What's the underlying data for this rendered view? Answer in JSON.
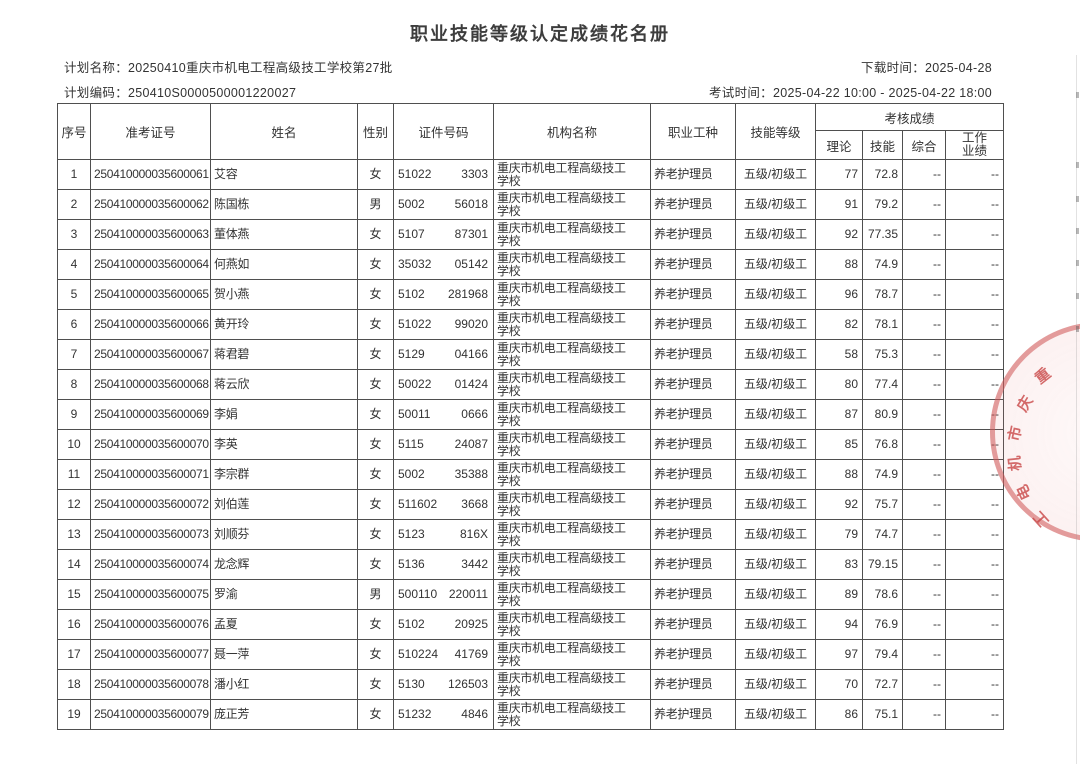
{
  "page": {
    "title": "职业技能等级认定成绩花名册"
  },
  "meta": {
    "plan_name_label": "计划名称：",
    "plan_name": "20250410重庆市机电工程高级技工学校第27批",
    "plan_code_label": "计划编码：",
    "plan_code": "250410S0000500001220027",
    "download_label": "下载时间：",
    "download_time": "2025-04-28",
    "exam_label": "考试时间：",
    "exam_time": "2025-04-22 10:00 - 2025-04-22 18:00"
  },
  "table": {
    "headers": {
      "no": "序号",
      "ticket": "准考证号",
      "name": "姓名",
      "gender": "性别",
      "id": "证件号码",
      "org": "机构名称",
      "occupation": "职业工种",
      "level": "技能等级",
      "score_group": "考核成绩",
      "theory": "理论",
      "skill": "技能",
      "comprehensive": "综合",
      "work_l1": "工作",
      "work_l2": "业绩"
    },
    "shared": {
      "org_line1": "重庆市机电工程高级技工",
      "org_line2": "学校",
      "occupation": "养老护理员",
      "level": "五级/初级工",
      "dash": "--"
    },
    "rows": [
      {
        "no": "1",
        "ticket": "250410000035600061",
        "name": "艾容",
        "gender": "女",
        "id_l": "51022",
        "id_r": "3303",
        "theory": "77",
        "skill": "72.8"
      },
      {
        "no": "2",
        "ticket": "250410000035600062",
        "name": "陈国栋",
        "gender": "男",
        "id_l": "5002",
        "id_r": "56018",
        "theory": "91",
        "skill": "79.2"
      },
      {
        "no": "3",
        "ticket": "250410000035600063",
        "name": "董体燕",
        "gender": "女",
        "id_l": "5107",
        "id_r": "87301",
        "theory": "92",
        "skill": "77.35"
      },
      {
        "no": "4",
        "ticket": "250410000035600064",
        "name": "何燕如",
        "gender": "女",
        "id_l": "35032",
        "id_r": "05142",
        "theory": "88",
        "skill": "74.9"
      },
      {
        "no": "5",
        "ticket": "250410000035600065",
        "name": "贺小燕",
        "gender": "女",
        "id_l": "5102",
        "id_r": "281968",
        "theory": "96",
        "skill": "78.7"
      },
      {
        "no": "6",
        "ticket": "250410000035600066",
        "name": "黄开玲",
        "gender": "女",
        "id_l": "51022",
        "id_r": "99020",
        "theory": "82",
        "skill": "78.1"
      },
      {
        "no": "7",
        "ticket": "250410000035600067",
        "name": "蒋君碧",
        "gender": "女",
        "id_l": "5129",
        "id_r": "04166",
        "theory": "58",
        "skill": "75.3"
      },
      {
        "no": "8",
        "ticket": "250410000035600068",
        "name": "蒋云欣",
        "gender": "女",
        "id_l": "50022",
        "id_r": "01424",
        "theory": "80",
        "skill": "77.4"
      },
      {
        "no": "9",
        "ticket": "250410000035600069",
        "name": "李娟",
        "gender": "女",
        "id_l": "50011",
        "id_r": "0666",
        "theory": "87",
        "skill": "80.9"
      },
      {
        "no": "10",
        "ticket": "250410000035600070",
        "name": "李英",
        "gender": "女",
        "id_l": "5115",
        "id_r": "24087",
        "theory": "85",
        "skill": "76.8"
      },
      {
        "no": "11",
        "ticket": "250410000035600071",
        "name": "李宗群",
        "gender": "女",
        "id_l": "5002",
        "id_r": "35388",
        "theory": "88",
        "skill": "74.9"
      },
      {
        "no": "12",
        "ticket": "250410000035600072",
        "name": "刘伯莲",
        "gender": "女",
        "id_l": "511602",
        "id_r": "3668",
        "theory": "92",
        "skill": "75.7"
      },
      {
        "no": "13",
        "ticket": "250410000035600073",
        "name": "刘顺芬",
        "gender": "女",
        "id_l": "5123",
        "id_r": "816X",
        "theory": "79",
        "skill": "74.7"
      },
      {
        "no": "14",
        "ticket": "250410000035600074",
        "name": "龙念辉",
        "gender": "女",
        "id_l": "5136",
        "id_r": "3442",
        "theory": "83",
        "skill": "79.15"
      },
      {
        "no": "15",
        "ticket": "250410000035600075",
        "name": "罗渝",
        "gender": "男",
        "id_l": "500110",
        "id_r": "220011",
        "theory": "89",
        "skill": "78.6"
      },
      {
        "no": "16",
        "ticket": "250410000035600076",
        "name": "孟夏",
        "gender": "女",
        "id_l": "5102",
        "id_r": "20925",
        "theory": "94",
        "skill": "76.9"
      },
      {
        "no": "17",
        "ticket": "250410000035600077",
        "name": "聂一萍",
        "gender": "女",
        "id_l": "510224",
        "id_r": "41769",
        "theory": "97",
        "skill": "79.4"
      },
      {
        "no": "18",
        "ticket": "250410000035600078",
        "name": "潘小红",
        "gender": "女",
        "id_l": "5130",
        "id_r": "126503",
        "theory": "70",
        "skill": "72.7"
      },
      {
        "no": "19",
        "ticket": "250410000035600079",
        "name": "庞正芳",
        "gender": "女",
        "id_l": "51232",
        "id_r": "4846",
        "theory": "86",
        "skill": "75.1"
      }
    ]
  },
  "stamp": {
    "chars": [
      "重",
      "庆",
      "市",
      "机",
      "电",
      "工"
    ],
    "color": "#c84646"
  }
}
